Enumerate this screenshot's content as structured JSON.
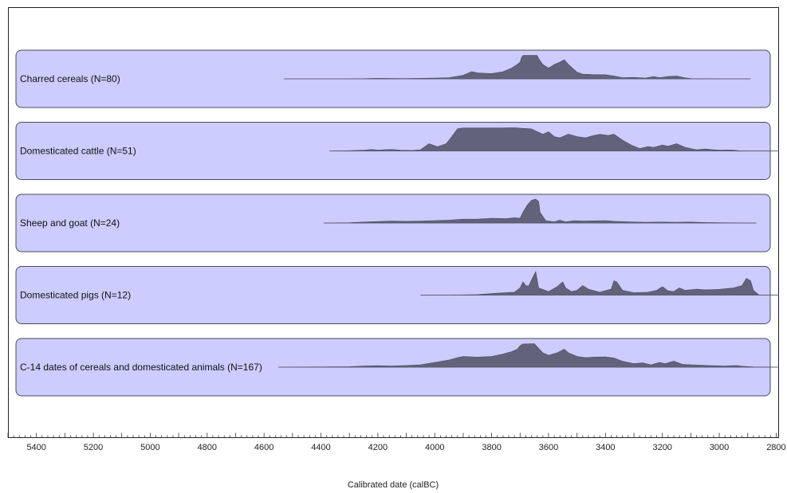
{
  "chart_data": {
    "type": "area",
    "xlabel": "Calibrated date (calBC)",
    "x_ticks": [
      5400,
      5200,
      5000,
      4800,
      4600,
      4400,
      4200,
      4000,
      3800,
      3600,
      3400,
      3200,
      3000,
      2800
    ],
    "xlim": [
      5500,
      2790
    ],
    "x_reversed": true,
    "minor_tick_step": 20,
    "colors": {
      "panel_fill": "#ccccff",
      "density_fill": "#62627a"
    },
    "series": [
      {
        "name": "Charred cereals (N=80)",
        "range": [
          4530,
          2890
        ],
        "points": [
          [
            4530,
            0
          ],
          [
            4300,
            0
          ],
          [
            4200,
            0.02
          ],
          [
            4100,
            0.01
          ],
          [
            4000,
            0.03
          ],
          [
            3950,
            0.05
          ],
          [
            3900,
            0.15
          ],
          [
            3870,
            0.3
          ],
          [
            3850,
            0.25
          ],
          [
            3800,
            0.22
          ],
          [
            3760,
            0.3
          ],
          [
            3730,
            0.45
          ],
          [
            3710,
            0.6
          ],
          [
            3700,
            0.7
          ],
          [
            3695,
            0.9
          ],
          [
            3690,
            0.98
          ],
          [
            3640,
            0.98
          ],
          [
            3635,
            0.85
          ],
          [
            3620,
            0.6
          ],
          [
            3600,
            0.45
          ],
          [
            3580,
            0.6
          ],
          [
            3560,
            0.7
          ],
          [
            3545,
            0.8
          ],
          [
            3530,
            0.6
          ],
          [
            3500,
            0.28
          ],
          [
            3480,
            0.2
          ],
          [
            3450,
            0.18
          ],
          [
            3400,
            0.17
          ],
          [
            3370,
            0.12
          ],
          [
            3340,
            0.05
          ],
          [
            3300,
            0.06
          ],
          [
            3260,
            0.03
          ],
          [
            3230,
            0.1
          ],
          [
            3210,
            0.05
          ],
          [
            3180,
            0.1
          ],
          [
            3150,
            0.12
          ],
          [
            3120,
            0.04
          ],
          [
            3100,
            0.01
          ],
          [
            3000,
            0
          ],
          [
            2890,
            0
          ]
        ]
      },
      {
        "name": "Domesticated cattle (N=51)",
        "range": [
          4370,
          2790
        ],
        "points": [
          [
            4370,
            0
          ],
          [
            4300,
            0.01
          ],
          [
            4250,
            0.03
          ],
          [
            4220,
            0.06
          ],
          [
            4200,
            0.03
          ],
          [
            4180,
            0.05
          ],
          [
            4150,
            0.06
          ],
          [
            4120,
            0.03
          ],
          [
            4080,
            0.02
          ],
          [
            4050,
            0.05
          ],
          [
            4020,
            0.3
          ],
          [
            3990,
            0.18
          ],
          [
            3960,
            0.3
          ],
          [
            3940,
            0.6
          ],
          [
            3920,
            0.93
          ],
          [
            3900,
            0.96
          ],
          [
            3800,
            0.96
          ],
          [
            3720,
            0.97
          ],
          [
            3660,
            0.92
          ],
          [
            3620,
            0.7
          ],
          [
            3600,
            0.8
          ],
          [
            3580,
            0.6
          ],
          [
            3560,
            0.55
          ],
          [
            3530,
            0.7
          ],
          [
            3500,
            0.6
          ],
          [
            3470,
            0.55
          ],
          [
            3450,
            0.62
          ],
          [
            3420,
            0.7
          ],
          [
            3390,
            0.65
          ],
          [
            3370,
            0.7
          ],
          [
            3340,
            0.45
          ],
          [
            3310,
            0.25
          ],
          [
            3280,
            0.1
          ],
          [
            3250,
            0.18
          ],
          [
            3230,
            0.15
          ],
          [
            3200,
            0.25
          ],
          [
            3180,
            0.2
          ],
          [
            3150,
            0.3
          ],
          [
            3120,
            0.15
          ],
          [
            3080,
            0.05
          ],
          [
            3050,
            0.08
          ],
          [
            3000,
            0.03
          ],
          [
            2960,
            0.04
          ],
          [
            2930,
            0.01
          ],
          [
            2900,
            0
          ],
          [
            2790,
            0
          ]
        ]
      },
      {
        "name": "Sheep and goat (N=24)",
        "range": [
          4390,
          2870
        ],
        "points": [
          [
            4390,
            0
          ],
          [
            4300,
            0.01
          ],
          [
            4250,
            0.04
          ],
          [
            4200,
            0.06
          ],
          [
            4150,
            0.08
          ],
          [
            4100,
            0.07
          ],
          [
            4050,
            0.08
          ],
          [
            4000,
            0.1
          ],
          [
            3950,
            0.12
          ],
          [
            3900,
            0.16
          ],
          [
            3850,
            0.16
          ],
          [
            3800,
            0.2
          ],
          [
            3750,
            0.18
          ],
          [
            3720,
            0.22
          ],
          [
            3700,
            0.2
          ],
          [
            3690,
            0.45
          ],
          [
            3675,
            0.75
          ],
          [
            3660,
            0.95
          ],
          [
            3645,
            1.0
          ],
          [
            3635,
            0.9
          ],
          [
            3630,
            0.45
          ],
          [
            3610,
            0.1
          ],
          [
            3580,
            0.05
          ],
          [
            3560,
            0.12
          ],
          [
            3540,
            0.05
          ],
          [
            3510,
            0.1
          ],
          [
            3480,
            0.08
          ],
          [
            3440,
            0.09
          ],
          [
            3400,
            0.1
          ],
          [
            3370,
            0.07
          ],
          [
            3320,
            0.05
          ],
          [
            3260,
            0.03
          ],
          [
            3200,
            0.04
          ],
          [
            3150,
            0.03
          ],
          [
            3100,
            0.04
          ],
          [
            3050,
            0.02
          ],
          [
            3000,
            0.01
          ],
          [
            2870,
            0
          ]
        ]
      },
      {
        "name": "Domesticated pigs (N=12)",
        "range": [
          4050,
          2790
        ],
        "points": [
          [
            4050,
            0
          ],
          [
            3950,
            0
          ],
          [
            3850,
            0.02
          ],
          [
            3780,
            0.08
          ],
          [
            3720,
            0.12
          ],
          [
            3700,
            0.3
          ],
          [
            3690,
            0.55
          ],
          [
            3680,
            0.4
          ],
          [
            3670,
            0.38
          ],
          [
            3655,
            0.75
          ],
          [
            3645,
            0.98
          ],
          [
            3635,
            0.3
          ],
          [
            3600,
            0.15
          ],
          [
            3570,
            0.35
          ],
          [
            3550,
            0.55
          ],
          [
            3540,
            0.3
          ],
          [
            3520,
            0.15
          ],
          [
            3500,
            0.2
          ],
          [
            3480,
            0.4
          ],
          [
            3460,
            0.25
          ],
          [
            3420,
            0.12
          ],
          [
            3380,
            0.25
          ],
          [
            3370,
            0.6
          ],
          [
            3360,
            0.55
          ],
          [
            3340,
            0.2
          ],
          [
            3300,
            0.1
          ],
          [
            3250,
            0.12
          ],
          [
            3220,
            0.2
          ],
          [
            3200,
            0.35
          ],
          [
            3180,
            0.18
          ],
          [
            3160,
            0.15
          ],
          [
            3140,
            0.3
          ],
          [
            3120,
            0.2
          ],
          [
            3080,
            0.25
          ],
          [
            3050,
            0.22
          ],
          [
            3000,
            0.24
          ],
          [
            2950,
            0.3
          ],
          [
            2920,
            0.4
          ],
          [
            2905,
            0.7
          ],
          [
            2890,
            0.6
          ],
          [
            2880,
            0.2
          ],
          [
            2860,
            0
          ],
          [
            2790,
            0
          ]
        ]
      },
      {
        "name": "C-14 dates of cereals and domesticated animals (N=167)",
        "range": [
          4550,
          2790
        ],
        "points": [
          [
            4550,
            0
          ],
          [
            4400,
            0.01
          ],
          [
            4300,
            0.02
          ],
          [
            4250,
            0.05
          ],
          [
            4200,
            0.06
          ],
          [
            4150,
            0.05
          ],
          [
            4100,
            0.07
          ],
          [
            4050,
            0.1
          ],
          [
            4000,
            0.2
          ],
          [
            3950,
            0.3
          ],
          [
            3920,
            0.4
          ],
          [
            3900,
            0.45
          ],
          [
            3850,
            0.42
          ],
          [
            3800,
            0.45
          ],
          [
            3760,
            0.55
          ],
          [
            3730,
            0.65
          ],
          [
            3710,
            0.75
          ],
          [
            3700,
            0.9
          ],
          [
            3690,
            0.97
          ],
          [
            3650,
            0.98
          ],
          [
            3640,
            0.85
          ],
          [
            3620,
            0.6
          ],
          [
            3600,
            0.5
          ],
          [
            3570,
            0.6
          ],
          [
            3545,
            0.75
          ],
          [
            3530,
            0.6
          ],
          [
            3500,
            0.45
          ],
          [
            3470,
            0.4
          ],
          [
            3440,
            0.42
          ],
          [
            3400,
            0.43
          ],
          [
            3370,
            0.38
          ],
          [
            3340,
            0.25
          ],
          [
            3300,
            0.15
          ],
          [
            3270,
            0.18
          ],
          [
            3240,
            0.1
          ],
          [
            3210,
            0.2
          ],
          [
            3190,
            0.15
          ],
          [
            3160,
            0.25
          ],
          [
            3130,
            0.12
          ],
          [
            3100,
            0.1
          ],
          [
            3060,
            0.08
          ],
          [
            3020,
            0.06
          ],
          [
            2980,
            0.05
          ],
          [
            2940,
            0.07
          ],
          [
            2920,
            0.04
          ],
          [
            2880,
            0.01
          ],
          [
            2790,
            0
          ]
        ]
      }
    ]
  }
}
